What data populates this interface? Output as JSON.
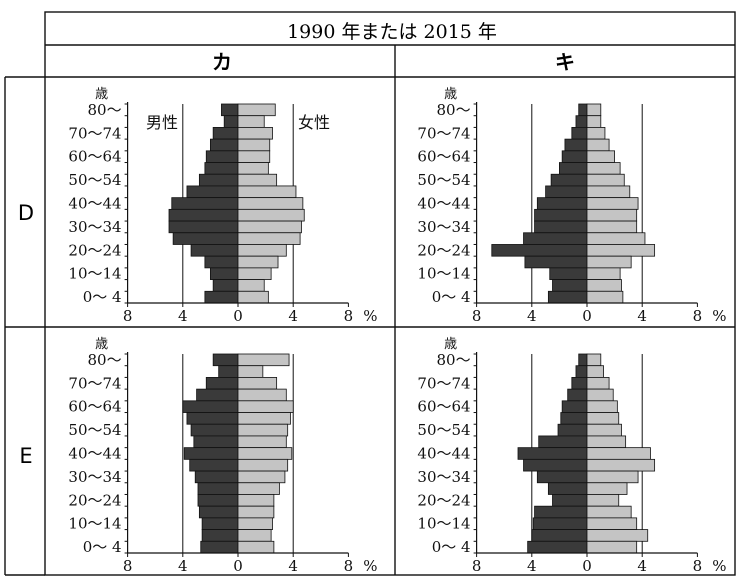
{
  "header": {
    "title": "1990 年または 2015 年",
    "col_labels": [
      "カ",
      "キ"
    ],
    "row_labels": [
      "D",
      "E"
    ]
  },
  "axis": {
    "age_unit": "歳",
    "age_labels": [
      "80～",
      "70～74",
      "60～64",
      "50～54",
      "40～44",
      "30～34",
      "20～24",
      "10～14",
      "0～ 4"
    ],
    "x_ticks": [
      "8",
      "4",
      "0",
      "4",
      "8"
    ],
    "percent_unit": "%",
    "male_label": "男性",
    "female_label": "女性"
  },
  "colors": {
    "male": "#3a3a3a",
    "female": "#c4c4c4",
    "line": "#111111"
  },
  "chart_data": [
    {
      "type": "bar",
      "row": "D",
      "column": "カ",
      "age_groups": [
        "80～",
        "75～79",
        "70～74",
        "65～69",
        "60～64",
        "55～59",
        "50～54",
        "45～49",
        "40～44",
        "35～39",
        "30～34",
        "25～29",
        "20～24",
        "15～19",
        "10～14",
        "5～9",
        "0～ 4"
      ],
      "series": [
        {
          "name": "男性",
          "values": [
            1.2,
            1.0,
            1.8,
            2.0,
            2.3,
            2.4,
            2.8,
            3.7,
            4.8,
            5.0,
            5.0,
            4.7,
            3.4,
            2.4,
            2.0,
            1.8,
            2.4
          ]
        },
        {
          "name": "女性",
          "values": [
            2.7,
            1.9,
            2.5,
            2.3,
            2.3,
            2.2,
            2.8,
            4.2,
            4.7,
            4.8,
            4.6,
            4.5,
            3.5,
            2.9,
            2.4,
            1.9,
            2.2
          ]
        }
      ],
      "xlim": [
        -8,
        8
      ]
    },
    {
      "type": "bar",
      "row": "D",
      "column": "キ",
      "age_groups": [
        "80～",
        "75～79",
        "70～74",
        "65～69",
        "60～64",
        "55～59",
        "50～54",
        "45～49",
        "40～44",
        "35～39",
        "30～34",
        "25～29",
        "20～24",
        "15～19",
        "10～14",
        "5～9",
        "0～ 4"
      ],
      "series": [
        {
          "name": "男性",
          "values": [
            0.6,
            0.8,
            1.1,
            1.6,
            1.8,
            2.0,
            2.6,
            3.0,
            3.6,
            3.8,
            3.8,
            4.6,
            6.9,
            4.5,
            2.7,
            2.5,
            2.8
          ]
        },
        {
          "name": "女性",
          "values": [
            1.0,
            1.0,
            1.3,
            1.6,
            2.0,
            2.4,
            2.7,
            3.1,
            3.7,
            3.6,
            3.6,
            4.2,
            4.9,
            3.2,
            2.4,
            2.5,
            2.6
          ]
        }
      ],
      "xlim": [
        -8,
        8
      ]
    },
    {
      "type": "bar",
      "row": "E",
      "column": "カ",
      "age_groups": [
        "80～",
        "75～79",
        "70～74",
        "65～69",
        "60～64",
        "55～59",
        "50～54",
        "45～49",
        "40～44",
        "35～39",
        "30～34",
        "25～29",
        "20～24",
        "15～19",
        "10～14",
        "5～9",
        "0～ 4"
      ],
      "series": [
        {
          "name": "男性",
          "values": [
            1.8,
            1.4,
            2.3,
            3.0,
            4.0,
            3.7,
            3.4,
            3.2,
            3.9,
            3.5,
            3.1,
            2.9,
            2.9,
            2.8,
            2.6,
            2.6,
            2.7
          ]
        },
        {
          "name": "女性",
          "values": [
            3.7,
            1.8,
            2.8,
            3.5,
            4.0,
            3.8,
            3.6,
            3.5,
            3.9,
            3.6,
            3.4,
            3.0,
            2.6,
            2.6,
            2.5,
            2.4,
            2.6
          ]
        }
      ],
      "xlim": [
        -8,
        8
      ]
    },
    {
      "type": "bar",
      "row": "E",
      "column": "キ",
      "age_groups": [
        "80～",
        "75～79",
        "70～74",
        "65～69",
        "60～64",
        "55～59",
        "50～54",
        "45～49",
        "40～44",
        "35～39",
        "30～34",
        "25～29",
        "20～24",
        "15～19",
        "10～14",
        "5～9",
        "0～ 4"
      ],
      "series": [
        {
          "name": "男性",
          "values": [
            0.6,
            0.8,
            1.1,
            1.4,
            1.8,
            1.9,
            2.1,
            3.5,
            5.0,
            4.6,
            3.6,
            2.8,
            2.5,
            3.8,
            3.9,
            4.0,
            4.3
          ]
        },
        {
          "name": "女性",
          "values": [
            1.0,
            1.2,
            1.6,
            1.9,
            2.2,
            2.3,
            2.5,
            2.8,
            4.6,
            4.9,
            3.7,
            2.9,
            2.3,
            3.2,
            3.6,
            4.4,
            3.6
          ]
        }
      ],
      "xlim": [
        -8,
        8
      ]
    }
  ]
}
